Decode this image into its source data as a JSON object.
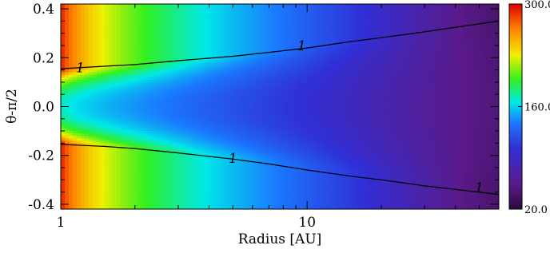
{
  "chart_data": {
    "type": "heatmap",
    "xlabel": "Radius [AU]",
    "ylabel": "θ-π/2",
    "x_scale": "log",
    "xlim": [
      1,
      60
    ],
    "ylim": [
      -0.42,
      0.42
    ],
    "x_ticks": [
      {
        "value": 1,
        "label": "1"
      },
      {
        "value": 10,
        "label": "10"
      }
    ],
    "y_ticks": [
      {
        "value": -0.4,
        "label": "-0.4"
      },
      {
        "value": -0.2,
        "label": "-0.2"
      },
      {
        "value": 0.0,
        "label": "0.0"
      },
      {
        "value": 0.2,
        "label": "0.2"
      },
      {
        "value": 0.4,
        "label": "0.4"
      }
    ],
    "colorbar": {
      "min": 20.0,
      "max": 300.0,
      "ticks": [
        {
          "value": 300.0,
          "label": "300.0"
        },
        {
          "value": 160.0,
          "label": "160.0"
        },
        {
          "value": 20.0,
          "label": "20.0"
        }
      ],
      "colormap": [
        "#2a0a3a",
        "#5a1a8a",
        "#3030d8",
        "#1a78ff",
        "#00e8e8",
        "#30f020",
        "#f0f000",
        "#ff8000",
        "#e00000"
      ]
    },
    "surface_edge_radius": [
      1,
      2,
      3,
      5,
      7,
      10,
      15,
      20,
      30,
      45,
      60
    ],
    "surface_height": [
      0.15,
      0.17,
      0.185,
      0.205,
      0.22,
      0.24,
      0.265,
      0.28,
      0.305,
      0.33,
      0.35
    ],
    "contours": [
      {
        "level": "1",
        "x": [
          1,
          1.5,
          2,
          3,
          5,
          7,
          10,
          15,
          20,
          30,
          45,
          60
        ],
        "y": [
          0.155,
          0.165,
          0.172,
          0.188,
          0.206,
          0.222,
          0.24,
          0.266,
          0.282,
          0.306,
          0.332,
          0.35
        ]
      },
      {
        "level": "1",
        "x": [
          1,
          1.5,
          2,
          3,
          5,
          7,
          10,
          15,
          20,
          30,
          45,
          60
        ],
        "y": [
          -0.155,
          -0.163,
          -0.172,
          -0.19,
          -0.215,
          -0.235,
          -0.26,
          -0.285,
          -0.3,
          -0.325,
          -0.345,
          -0.36
        ]
      }
    ],
    "contour_labels": [
      {
        "text": "1",
        "x": 1.2,
        "y": 0.16
      },
      {
        "text": "1",
        "x": 9.5,
        "y": 0.25
      },
      {
        "text": "1",
        "x": 5.0,
        "y": -0.21
      },
      {
        "text": "1",
        "x": 50,
        "y": -0.33
      }
    ]
  }
}
